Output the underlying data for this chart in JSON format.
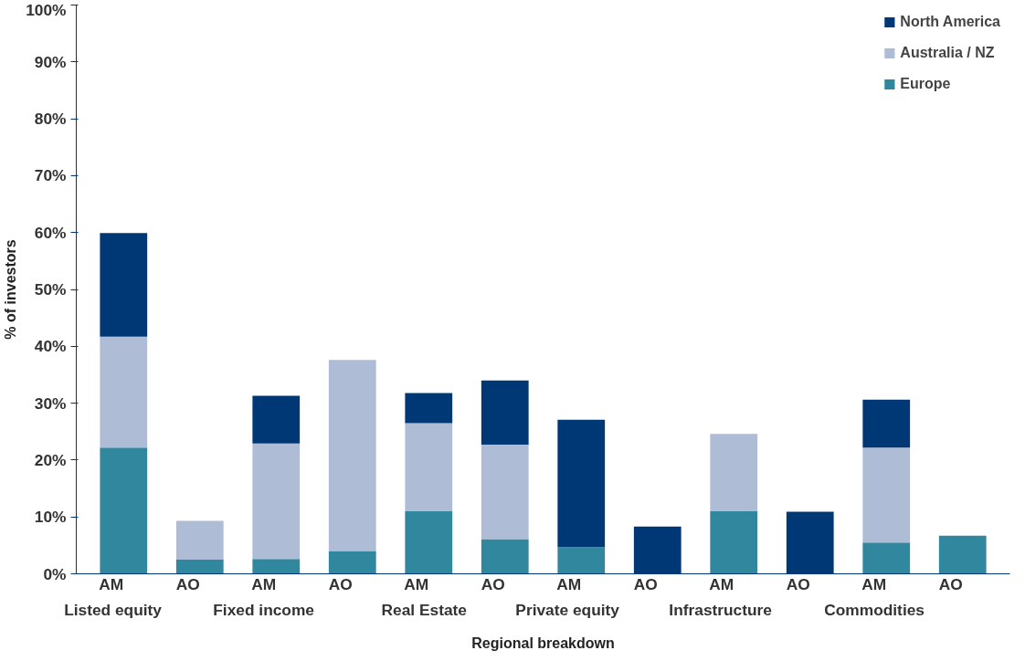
{
  "chart_data": {
    "type": "bar",
    "stacked": true,
    "xlabel": "Regional breakdown",
    "ylabel": "% of investors",
    "categories": [
      "AM",
      "AO",
      "AM",
      "AO",
      "AM",
      "AO",
      "AM",
      "AO",
      "AM",
      "AO",
      "AM",
      "AO"
    ],
    "annotations": [
      "Listed equity",
      "Fixed income",
      "Real Estate",
      "Private equity",
      "Infrastructure",
      "Commodities"
    ],
    "series": [
      {
        "name": "Europe",
        "color": "#31879e",
        "values": [
          22.2,
          2.5,
          2.6,
          4.0,
          11.0,
          6.1,
          4.7,
          0,
          11.0,
          0,
          5.5,
          6.7
        ]
      },
      {
        "name": "Australia / NZ",
        "color": "#aebcd6",
        "values": [
          19.5,
          6.8,
          20.3,
          33.6,
          15.5,
          16.6,
          0,
          0,
          13.6,
          0,
          16.7,
          0
        ]
      },
      {
        "name": "North America",
        "color": "#003876",
        "values": [
          18.2,
          0,
          8.4,
          0,
          5.3,
          11.3,
          22.4,
          8.3,
          0,
          10.9,
          8.4,
          0
        ]
      }
    ],
    "ylim": [
      0,
      100
    ],
    "yticks": [
      {
        "value": 0,
        "label": "0%"
      },
      {
        "value": 10,
        "label": "10%"
      },
      {
        "value": 20,
        "label": "20%"
      },
      {
        "value": 30,
        "label": "30%"
      },
      {
        "value": 40,
        "label": "40%"
      },
      {
        "value": 50,
        "label": "50%"
      },
      {
        "value": 60,
        "label": "60%"
      },
      {
        "value": 70,
        "label": "70%"
      },
      {
        "value": 80,
        "label": "80%"
      },
      {
        "value": 90,
        "label": "90%"
      },
      {
        "value": 100,
        "label": "100%"
      }
    ],
    "grid": false,
    "legend": "top right"
  }
}
